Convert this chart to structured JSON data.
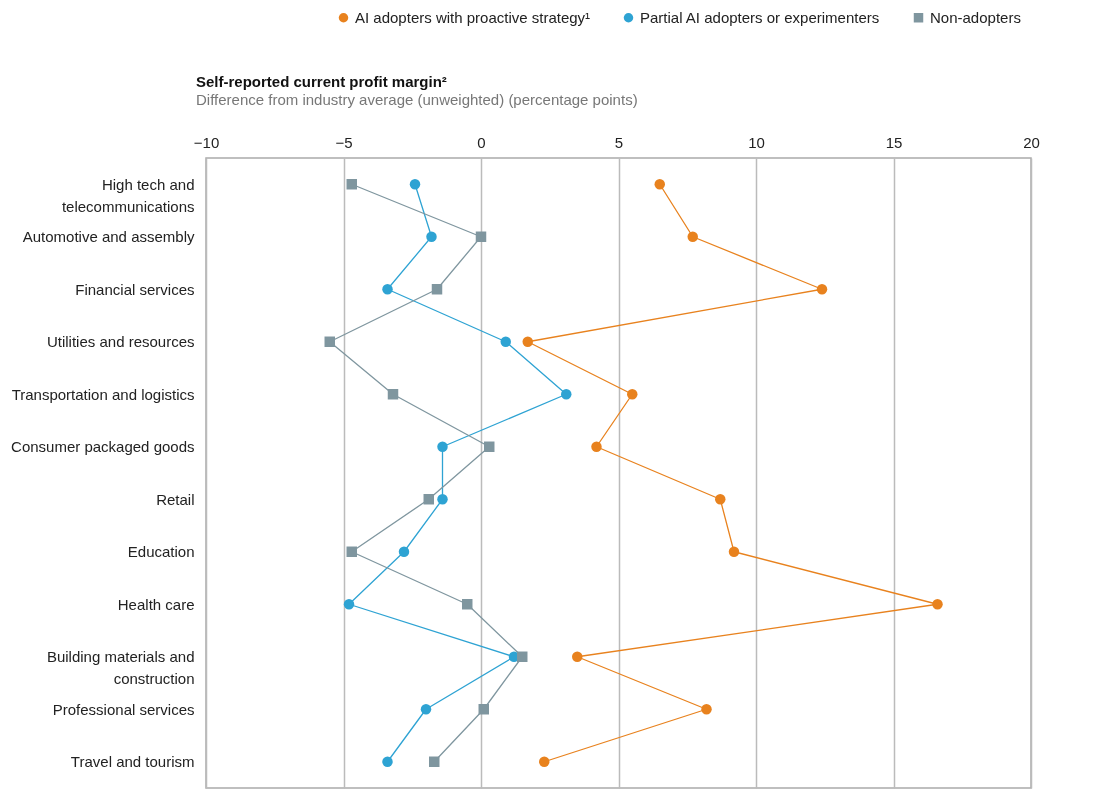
{
  "chart_data": {
    "type": "line",
    "orientation": "horizontal",
    "title": "Self-reported current profit margin²",
    "subtitle": "Difference from industry average (unweighted) (percentage points)",
    "categories": [
      "High tech and telecommunications",
      "Automotive and assembly",
      "Financial services",
      "Utilities and resources",
      "Transportation and logistics",
      "Consumer packaged goods",
      "Retail",
      "Education",
      "Health care",
      "Building materials and construction",
      "Professional services",
      "Travel and tourism"
    ],
    "series": [
      {
        "name": "AI adopters with proactive strategy¹",
        "color": "#e8821e",
        "marker": "circle",
        "values": [
          6.5,
          7.7,
          12.4,
          1.7,
          5.5,
          4.2,
          8.7,
          9.2,
          16.6,
          3.5,
          8.2,
          2.3
        ]
      },
      {
        "name": "Partial AI adopters or experimenters",
        "color": "#2ea3d3",
        "marker": "circle",
        "values": [
          -2.4,
          -1.8,
          -3.4,
          0.9,
          3.1,
          -1.4,
          -1.4,
          -2.8,
          -4.8,
          1.2,
          -2.0,
          -3.4
        ]
      },
      {
        "name": "Non-adopters",
        "color": "#7f969f",
        "marker": "square",
        "values": [
          -4.7,
          0,
          -1.6,
          -5.5,
          -3.2,
          0.3,
          -1.9,
          -4.7,
          -0.5,
          1.5,
          0.1,
          -1.7
        ]
      }
    ],
    "xlim": [
      -10,
      20
    ],
    "xticks": [
      -10,
      -5,
      0,
      5,
      10,
      15,
      20
    ],
    "grid": "x",
    "legend": "top right",
    "line_style": "solid"
  }
}
